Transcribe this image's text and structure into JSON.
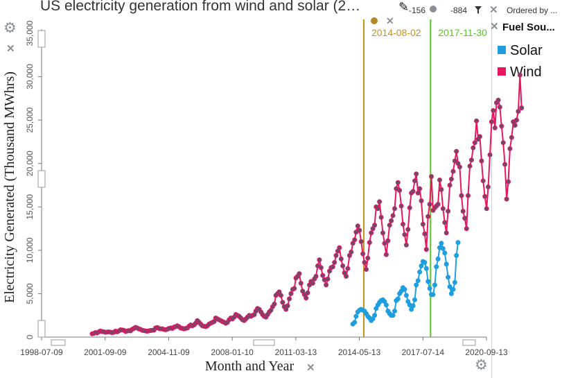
{
  "header": {
    "title": "US electricity generation from wind and solar (2…",
    "x_count": "-156",
    "y_count": "-884",
    "ordered_by": "Ordered by ..."
  },
  "legend": {
    "title": "Fuel Sou...",
    "items": [
      {
        "label": "Solar",
        "color": "#1f9ee0"
      },
      {
        "label": "Wind",
        "color": "#e8175d"
      }
    ]
  },
  "icons": [
    "pencil-icon",
    "gear-icon",
    "close-icon",
    "filter-icon",
    "point-icon"
  ],
  "chart_data": {
    "type": "line",
    "xlabel": "Month and Year",
    "ylabel": "Electricity Generated (Thousand MWhrs)",
    "x_ticks": [
      "1998-07-09",
      "2001-09-09",
      "2004-11-09",
      "2008-01-10",
      "2011-03-13",
      "2014-05-13",
      "2017-07-14",
      "2020-09-13"
    ],
    "y_ticks": [
      "0",
      "5,000",
      "10,000",
      "15,000",
      "20,000",
      "25,000",
      "30,000",
      "35,000"
    ],
    "xlim": [
      "1998-07-09",
      "2020-09-13"
    ],
    "ylim": [
      0,
      35000
    ],
    "marker_lines": [
      {
        "date": "2014-08-02",
        "color": "#c8921a"
      },
      {
        "date": "2017-11-30",
        "color": "#55c61e"
      }
    ],
    "series": [
      {
        "name": "Wind",
        "color": "#e8175d",
        "start": "2001-01",
        "values": [
          375,
          420,
          520,
          480,
          600,
          700,
          640,
          610,
          550,
          580,
          600,
          560,
          520,
          560,
          680,
          600,
          700,
          840,
          820,
          780,
          650,
          700,
          750,
          720,
          900,
          1000,
          1120,
          1050,
          950,
          890,
          780,
          750,
          700,
          680,
          720,
          760,
          780,
          800,
          1050,
          1100,
          1000,
          950,
          950,
          880,
          850,
          900,
          1000,
          1050,
          1000,
          1150,
          1200,
          1300,
          1200,
          1050,
          1000,
          950,
          1000,
          1050,
          1250,
          1400,
          1300,
          1400,
          1600,
          1900,
          1700,
          1500,
          1300,
          1250,
          1200,
          1300,
          1500,
          1600,
          1700,
          1800,
          2200,
          2100,
          2000,
          1900,
          1800,
          1700,
          1600,
          1700,
          2000,
          2200,
          2100,
          2300,
          2600,
          2500,
          2400,
          2200,
          2000,
          1900,
          2100,
          2300,
          2500,
          2400,
          2500,
          2600,
          3000,
          3300,
          3200,
          2900,
          2600,
          2400,
          2300,
          2600,
          2900,
          3100,
          3500,
          3800,
          4800,
          5000,
          5200,
          4800,
          4000,
          3500,
          3200,
          3600,
          4400,
          5000,
          5500,
          5600,
          6800,
          7000,
          7300,
          6200,
          5300,
          4900,
          4500,
          5100,
          6000,
          6400,
          6200,
          6700,
          7000,
          8200,
          8900,
          8000,
          7100,
          6600,
          6000,
          6700,
          7600,
          8000,
          8100,
          8600,
          9400,
          9900,
          10300,
          9000,
          8200,
          7400,
          7000,
          7900,
          9400,
          9800,
          10800,
          11200,
          12100,
          12800,
          12300,
          11000,
          9600,
          8600,
          7800,
          9100,
          10900,
          12000,
          12500,
          12900,
          15000,
          14800,
          15600,
          13800,
          12000,
          10800,
          9500,
          11100,
          12900,
          13400,
          14000,
          14800,
          17100,
          17800,
          16900,
          15100,
          13000,
          11800,
          10600,
          12400,
          14900,
          16600,
          16800,
          18000,
          18800,
          16600,
          17100,
          15700,
          13000,
          11900,
          10100,
          13900,
          15300,
          18500,
          14600,
          14900,
          15100,
          15300,
          18100,
          17000,
          14800,
          13200,
          12000,
          14500,
          17500,
          18200,
          19100,
          20300,
          21400,
          20000,
          19600,
          16300,
          14500,
          13700,
          12500,
          16300,
          19700,
          20400,
          21800,
          22400,
          24900,
          22800,
          23100,
          20300,
          18000,
          16200,
          14800,
          17300,
          21000,
          24800,
          26100,
          24100,
          27000,
          27300,
          26500,
          24300,
          22400,
          19900,
          15900,
          17900,
          21700,
          23000,
          24800,
          24400,
          25000,
          26000,
          30200,
          26400
        ]
      },
      {
        "name": "Solar",
        "color": "#1f9ee0",
        "start": "2014-01",
        "values": [
          1500,
          1700,
          2400,
          2900,
          3100,
          3200,
          3100,
          3000,
          2700,
          2400,
          2200,
          1900,
          2100,
          2500,
          3300,
          3700,
          4000,
          4200,
          4300,
          4100,
          3700,
          3000,
          2700,
          2500,
          2500,
          3000,
          4200,
          4400,
          5000,
          5300,
          5700,
          5500,
          4800,
          4100,
          3700,
          3200,
          3600,
          4300,
          6000,
          6500,
          7500,
          8200,
          8700,
          8600,
          7900,
          6400,
          5600,
          4900,
          4900,
          6000,
          8100,
          9000,
          10300,
          10800,
          10200,
          9700,
          8400,
          6900,
          5800,
          5000,
          5500,
          6300,
          9400,
          10900
        ]
      }
    ]
  }
}
